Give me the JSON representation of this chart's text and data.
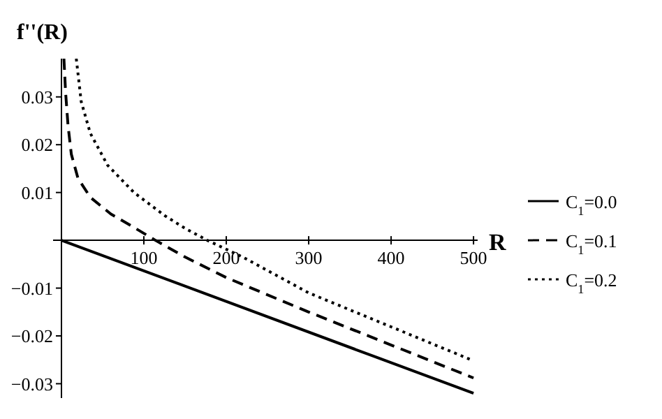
{
  "chart_data": {
    "type": "line",
    "xlabel": "R",
    "ylabel": "f''(R)",
    "xlim": [
      0,
      505
    ],
    "ylim": [
      -0.033,
      0.038
    ],
    "xticks": [
      100,
      200,
      300,
      400,
      500
    ],
    "yticks": [
      {
        "value": -0.03,
        "label": "−0.03"
      },
      {
        "value": -0.02,
        "label": "−0.02"
      },
      {
        "value": -0.01,
        "label": "−0.01"
      },
      0.01,
      0.02,
      0.03
    ],
    "legend": "right",
    "marker": "none",
    "series": [
      {
        "name": "C$_{1}$=0.0",
        "color": "#000000",
        "line_style": "solid",
        "x": [
          0,
          500
        ],
        "values": [
          0,
          -0.032
        ]
      },
      {
        "name": "C$_{1}$=0.1",
        "color": "#000000",
        "line_style": "dashed",
        "x": [
          3,
          5,
          8,
          12,
          20,
          35,
          60,
          85,
          114,
          150,
          200,
          300,
          400,
          500
        ],
        "values": [
          0.038,
          0.031,
          0.024,
          0.018,
          0.013,
          0.009,
          0.0055,
          0.003,
          0,
          -0.0035,
          -0.0078,
          -0.015,
          -0.0219,
          -0.0288
        ]
      },
      {
        "name": "C$_{1}$=0.2",
        "color": "#000000",
        "line_style": "dotted",
        "x": [
          18,
          24,
          35,
          56,
          88,
          125,
          150,
          177,
          220,
          300,
          400,
          500
        ],
        "values": [
          0.038,
          0.029,
          0.0224,
          0.0157,
          0.01,
          0.0052,
          0.0025,
          0,
          -0.0035,
          -0.011,
          -0.0181,
          -0.0252
        ]
      }
    ]
  }
}
